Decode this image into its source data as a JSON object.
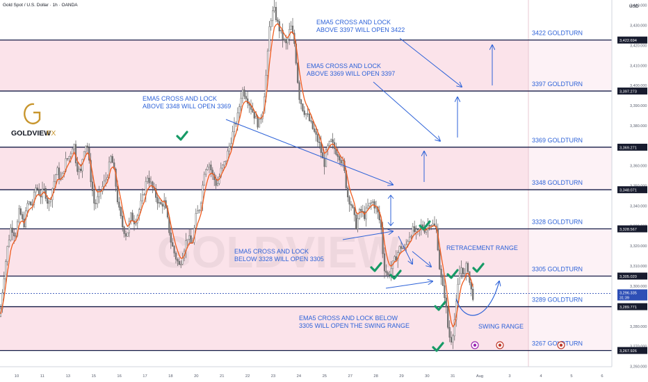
{
  "header": {
    "symbol_title": "Gold Spot / U.S. Dollar · 1h · OANDA",
    "currency": "USD"
  },
  "brand": {
    "name": "GOLDVIEW",
    "suffix": "FX",
    "watermark": "GOLDVIEW"
  },
  "colors": {
    "zone_fill": "#fbe3ea",
    "level_line": "#141a45",
    "annotation_blue": "#2d62d8",
    "check_green": "#169a66",
    "candle_up": "#f1f1f1",
    "candle_down": "#7a7a7a",
    "ema_line": "#ef5b1d",
    "logo_gold": "#c8962e",
    "price_box": "#2e4fb6",
    "dark_box": "#171b2e"
  },
  "chart_data": {
    "type": "candlestick",
    "title": "Gold Spot / U.S. Dollar · 1h · OANDA",
    "ylabel": "USD",
    "ylim": [
      3255,
      3452
    ],
    "x_ticks": [
      "10",
      "11",
      "13",
      "15",
      "16",
      "17",
      "18",
      "20",
      "21",
      "22",
      "23",
      "24",
      "25",
      "27",
      "28",
      "29",
      "30",
      "31",
      "Aug",
      "3",
      "4",
      "5",
      "6",
      "7"
    ],
    "y_ticks": [
      3260,
      3270,
      3280,
      3290,
      3300,
      3310,
      3320,
      3330,
      3340,
      3350,
      3360,
      3370,
      3380,
      3390,
      3400,
      3410,
      3420,
      3430,
      3440
    ],
    "levels": [
      {
        "value": 3422.694,
        "label": "3422 GOLDTURN",
        "axis_label": "3,422.694"
      },
      {
        "value": 3397.273,
        "label": "3397 GOLDTURN",
        "axis_label": "3,397.273"
      },
      {
        "value": 3369.271,
        "label": "3369 GOLDTURN",
        "axis_label": "3,369.271"
      },
      {
        "value": 3348.071,
        "label": "3348 GOLDTURN",
        "axis_label": "3,348.071"
      },
      {
        "value": 3328.567,
        "label": "3328 GOLDTURN",
        "axis_label": "3,328.567"
      },
      {
        "value": 3305.02,
        "label": "3305 GOLDTURN",
        "axis_label": "3,305.020"
      },
      {
        "value": 3289.771,
        "label": "3289 GOLDTURN",
        "axis_label": "3,289.771"
      },
      {
        "value": 3267.926,
        "label": "3267 GOLDTURN",
        "axis_label": "3,267.926"
      }
    ],
    "zones": [
      [
        3397.273,
        3422.694
      ],
      [
        3348.071,
        3369.271
      ],
      [
        3305.02,
        3328.567
      ],
      [
        3267.926,
        3289.771
      ]
    ],
    "current_price": {
      "value": 3296.335,
      "label": "3,296.335",
      "countdown": "31:39"
    },
    "annotations": [
      {
        "lines": [
          "EMA5 CROSS AND LOCK",
          "ABOVE 3397 WILL OPEN 3422"
        ]
      },
      {
        "lines": [
          "EMA5 CROSS AND LOCK",
          "ABOVE 3369 WILL OPEN 3397"
        ]
      },
      {
        "lines": [
          "EMA5 CROSS AND LOCK",
          "ABOVE 3348 WILL OPEN 3369"
        ]
      },
      {
        "lines": [
          "EMA5 CROSS AND LOCK",
          "BELOW 3328 WILL OPEN 3305"
        ]
      },
      {
        "lines": [
          "EMA5 CROSS AND LOCK BELOW",
          "3305 WILL OPEN THE SWING RANGE"
        ]
      },
      {
        "lines": [
          "RETRACEMENT RANGE"
        ]
      },
      {
        "lines": [
          "SWING RANGE"
        ]
      }
    ],
    "price_series": [
      [
        0,
        3285
      ],
      [
        4,
        3300
      ],
      [
        10,
        3318
      ],
      [
        16,
        3330
      ],
      [
        22,
        3325
      ],
      [
        28,
        3338
      ],
      [
        34,
        3330
      ],
      [
        40,
        3342
      ],
      [
        46,
        3340
      ],
      [
        52,
        3350
      ],
      [
        58,
        3345
      ],
      [
        64,
        3348
      ],
      [
        70,
        3340
      ],
      [
        76,
        3350
      ],
      [
        82,
        3358
      ],
      [
        88,
        3352
      ],
      [
        94,
        3362
      ],
      [
        100,
        3365
      ],
      [
        106,
        3372
      ],
      [
        110,
        3360
      ],
      [
        116,
        3356
      ],
      [
        120,
        3368
      ],
      [
        125,
        3372
      ],
      [
        130,
        3355
      ],
      [
        136,
        3340
      ],
      [
        142,
        3345
      ],
      [
        148,
        3350
      ],
      [
        154,
        3355
      ],
      [
        160,
        3365
      ],
      [
        165,
        3355
      ],
      [
        170,
        3340
      ],
      [
        176,
        3330
      ],
      [
        182,
        3325
      ],
      [
        188,
        3335
      ],
      [
        194,
        3332
      ],
      [
        200,
        3338
      ],
      [
        206,
        3345
      ],
      [
        212,
        3355
      ],
      [
        218,
        3350
      ],
      [
        224,
        3345
      ],
      [
        230,
        3340
      ],
      [
        236,
        3342
      ],
      [
        240,
        3335
      ],
      [
        246,
        3322
      ],
      [
        252,
        3315
      ],
      [
        258,
        3310
      ],
      [
        264,
        3318
      ],
      [
        270,
        3325
      ],
      [
        276,
        3320
      ],
      [
        282,
        3335
      ],
      [
        288,
        3340
      ],
      [
        294,
        3358
      ],
      [
        300,
        3362
      ],
      [
        306,
        3355
      ],
      [
        312,
        3350
      ],
      [
        318,
        3358
      ],
      [
        324,
        3362
      ],
      [
        330,
        3370
      ],
      [
        336,
        3378
      ],
      [
        342,
        3385
      ],
      [
        348,
        3398
      ],
      [
        354,
        3395
      ],
      [
        360,
        3390
      ],
      [
        366,
        3385
      ],
      [
        372,
        3380
      ],
      [
        378,
        3388
      ],
      [
        384,
        3410
      ],
      [
        388,
        3432
      ],
      [
        394,
        3438
      ],
      [
        400,
        3430
      ],
      [
        406,
        3424
      ],
      [
        412,
        3420
      ],
      [
        418,
        3430
      ],
      [
        424,
        3420
      ],
      [
        430,
        3395
      ],
      [
        436,
        3388
      ],
      [
        442,
        3385
      ],
      [
        448,
        3380
      ],
      [
        454,
        3375
      ],
      [
        460,
        3370
      ],
      [
        466,
        3360
      ],
      [
        470,
        3368
      ],
      [
        476,
        3372
      ],
      [
        482,
        3368
      ],
      [
        488,
        3365
      ],
      [
        494,
        3360
      ],
      [
        500,
        3345
      ],
      [
        506,
        3340
      ],
      [
        512,
        3330
      ],
      [
        518,
        3338
      ],
      [
        524,
        3335
      ],
      [
        530,
        3340
      ],
      [
        536,
        3342
      ],
      [
        542,
        3338
      ],
      [
        548,
        3330
      ],
      [
        552,
        3310
      ],
      [
        558,
        3305
      ],
      [
        564,
        3310
      ],
      [
        570,
        3315
      ],
      [
        576,
        3320
      ],
      [
        582,
        3318
      ],
      [
        588,
        3325
      ],
      [
        594,
        3328
      ],
      [
        600,
        3326
      ],
      [
        606,
        3330
      ],
      [
        612,
        3328
      ],
      [
        618,
        3332
      ],
      [
        624,
        3330
      ],
      [
        628,
        3328
      ],
      [
        632,
        3310
      ],
      [
        636,
        3300
      ],
      [
        640,
        3295
      ],
      [
        644,
        3280
      ],
      [
        648,
        3272
      ],
      [
        652,
        3278
      ],
      [
        656,
        3290
      ],
      [
        660,
        3305
      ],
      [
        664,
        3310
      ],
      [
        668,
        3305
      ],
      [
        672,
        3312
      ],
      [
        676,
        3300
      ],
      [
        680,
        3295
      ],
      [
        682,
        3296
      ]
    ]
  }
}
